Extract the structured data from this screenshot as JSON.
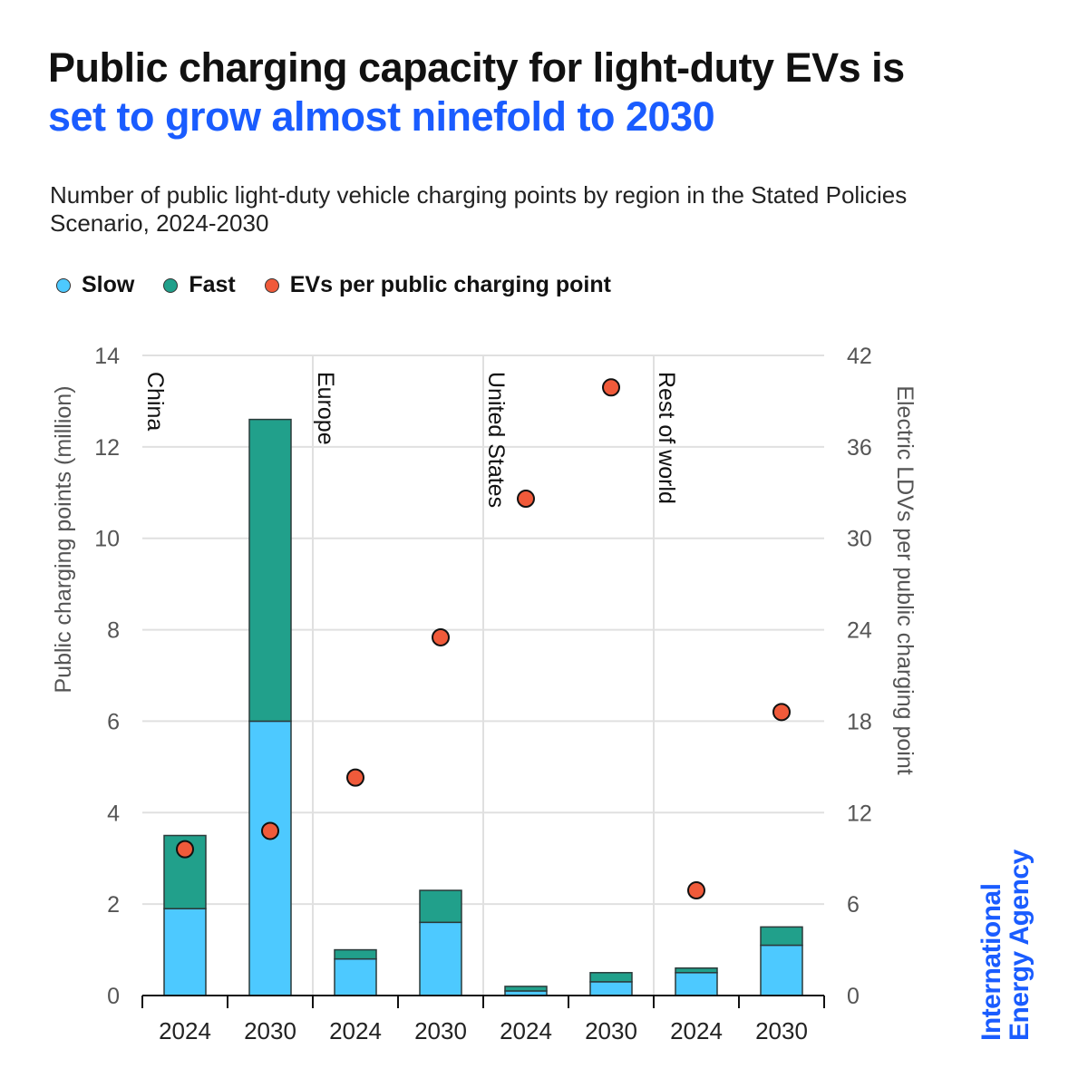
{
  "title_line1": "Public charging capacity for light-duty EVs is",
  "title_line2": "set to grow almost ninefold to 2030",
  "subtitle": "Number of public light-duty vehicle charging points by region in the Stated Policies Scenario, 2024-2030",
  "logo": "International Energy Agency",
  "colors": {
    "slow": "#4dc9ff",
    "fast": "#21a08b",
    "dot": "#f05a3a",
    "accent": "#1a5cff"
  },
  "chart_data": {
    "type": "bar",
    "stacked": true,
    "legend": [
      "Slow",
      "Fast",
      "EVs per public charging point"
    ],
    "legend_position": "top-left",
    "groups": [
      "China",
      "Europe",
      "United States",
      "Rest of world"
    ],
    "categories": [
      "2024",
      "2030",
      "2024",
      "2030",
      "2024",
      "2030",
      "2024",
      "2030"
    ],
    "series": [
      {
        "name": "Slow",
        "axis": "left",
        "values": [
          1.9,
          6.0,
          0.8,
          1.6,
          0.1,
          0.3,
          0.5,
          1.1
        ]
      },
      {
        "name": "Fast",
        "axis": "left",
        "values": [
          1.6,
          6.6,
          0.2,
          0.7,
          0.1,
          0.2,
          0.1,
          0.4
        ]
      },
      {
        "name": "EVs per public charging point",
        "type": "scatter",
        "axis": "right",
        "values": [
          9.6,
          10.8,
          14.3,
          23.5,
          32.6,
          39.9,
          6.9,
          18.6
        ]
      }
    ],
    "ylabel": "Public charging points (million)",
    "ylim": [
      0,
      14
    ],
    "yticks": [
      "0",
      "2",
      "4",
      "6",
      "8",
      "10",
      "12",
      "14"
    ],
    "y2label": "Electric LDVs per public charging point",
    "y2lim": [
      0,
      42
    ],
    "y2ticks": [
      "0",
      "6",
      "12",
      "18",
      "24",
      "30",
      "36",
      "42"
    ],
    "grid": true
  }
}
